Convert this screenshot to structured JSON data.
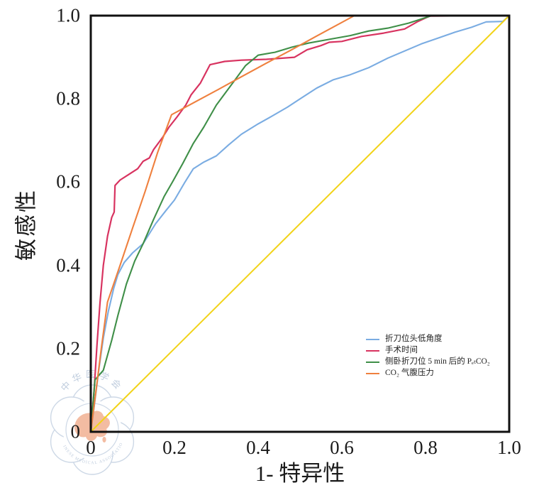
{
  "chart_data": {
    "type": "line",
    "title": "",
    "xlabel": "1- 特异性",
    "ylabel": "敏感性",
    "xlim": [
      0,
      1
    ],
    "ylim": [
      0,
      1
    ],
    "grid": false,
    "legend_position": "inside lower right",
    "xticks": [
      {
        "v": 0,
        "label": "0"
      },
      {
        "v": 0.2,
        "label": "0.2"
      },
      {
        "v": 0.4,
        "label": "0.4"
      },
      {
        "v": 0.6,
        "label": "0.6"
      },
      {
        "v": 0.8,
        "label": "0.8"
      },
      {
        "v": 1.0,
        "label": "1.0"
      }
    ],
    "yticks": [
      {
        "v": 0,
        "label": "0"
      },
      {
        "v": 0.2,
        "label": "0.2"
      },
      {
        "v": 0.4,
        "label": "0.4"
      },
      {
        "v": 0.6,
        "label": "0.6"
      },
      {
        "v": 0.8,
        "label": "0.8"
      },
      {
        "v": 1.0,
        "label": "1.0"
      }
    ],
    "series": [
      {
        "id": "jackknife-head-down-angle",
        "name": "折刀位头低角度",
        "color": "#7aace2",
        "width": 2.1,
        "in_legend": true,
        "points": [
          [
            0,
            0
          ],
          [
            0.008,
            0.06
          ],
          [
            0.02,
            0.155
          ],
          [
            0.03,
            0.225
          ],
          [
            0.042,
            0.29
          ],
          [
            0.055,
            0.345
          ],
          [
            0.065,
            0.378
          ],
          [
            0.08,
            0.407
          ],
          [
            0.1,
            0.43
          ],
          [
            0.125,
            0.452
          ],
          [
            0.155,
            0.5
          ],
          [
            0.18,
            0.532
          ],
          [
            0.2,
            0.557
          ],
          [
            0.225,
            0.6
          ],
          [
            0.245,
            0.632
          ],
          [
            0.27,
            0.648
          ],
          [
            0.3,
            0.663
          ],
          [
            0.33,
            0.69
          ],
          [
            0.36,
            0.715
          ],
          [
            0.4,
            0.74
          ],
          [
            0.427,
            0.755
          ],
          [
            0.47,
            0.78
          ],
          [
            0.5,
            0.8
          ],
          [
            0.54,
            0.826
          ],
          [
            0.58,
            0.846
          ],
          [
            0.62,
            0.858
          ],
          [
            0.664,
            0.875
          ],
          [
            0.71,
            0.898
          ],
          [
            0.75,
            0.915
          ],
          [
            0.79,
            0.932
          ],
          [
            0.83,
            0.946
          ],
          [
            0.87,
            0.96
          ],
          [
            0.91,
            0.972
          ],
          [
            0.945,
            0.985
          ],
          [
            0.985,
            0.986
          ],
          [
            1,
            1
          ]
        ]
      },
      {
        "id": "operation-time",
        "name": "手术时间",
        "color": "#d83360",
        "width": 2.2,
        "in_legend": true,
        "points": [
          [
            0,
            0
          ],
          [
            0.008,
            0.1
          ],
          [
            0.015,
            0.21
          ],
          [
            0.022,
            0.31
          ],
          [
            0.03,
            0.4
          ],
          [
            0.04,
            0.47
          ],
          [
            0.05,
            0.515
          ],
          [
            0.056,
            0.528
          ],
          [
            0.058,
            0.592
          ],
          [
            0.07,
            0.605
          ],
          [
            0.09,
            0.618
          ],
          [
            0.112,
            0.632
          ],
          [
            0.125,
            0.65
          ],
          [
            0.14,
            0.658
          ],
          [
            0.15,
            0.678
          ],
          [
            0.172,
            0.708
          ],
          [
            0.187,
            0.732
          ],
          [
            0.205,
            0.755
          ],
          [
            0.227,
            0.785
          ],
          [
            0.24,
            0.81
          ],
          [
            0.262,
            0.838
          ],
          [
            0.285,
            0.882
          ],
          [
            0.32,
            0.89
          ],
          [
            0.36,
            0.893
          ],
          [
            0.42,
            0.895
          ],
          [
            0.487,
            0.9
          ],
          [
            0.517,
            0.918
          ],
          [
            0.55,
            0.928
          ],
          [
            0.57,
            0.936
          ],
          [
            0.6,
            0.938
          ],
          [
            0.647,
            0.95
          ],
          [
            0.7,
            0.958
          ],
          [
            0.75,
            0.968
          ],
          [
            0.78,
            0.985
          ],
          [
            0.81,
            0.999
          ],
          [
            1,
            1
          ]
        ]
      },
      {
        "id": "petco2-5min-lateral-jackknife",
        "name": "侧卧折刀位 5 min 后的 PₑₜCO₂",
        "color": "#3f8f48",
        "width": 2.1,
        "in_legend": true,
        "points": [
          [
            0,
            0
          ],
          [
            0.01,
            0.125
          ],
          [
            0.03,
            0.148
          ],
          [
            0.05,
            0.22
          ],
          [
            0.065,
            0.28
          ],
          [
            0.085,
            0.355
          ],
          [
            0.105,
            0.41
          ],
          [
            0.125,
            0.452
          ],
          [
            0.15,
            0.51
          ],
          [
            0.175,
            0.565
          ],
          [
            0.195,
            0.6
          ],
          [
            0.22,
            0.645
          ],
          [
            0.245,
            0.693
          ],
          [
            0.27,
            0.732
          ],
          [
            0.3,
            0.785
          ],
          [
            0.342,
            0.842
          ],
          [
            0.37,
            0.88
          ],
          [
            0.4,
            0.905
          ],
          [
            0.44,
            0.912
          ],
          [
            0.48,
            0.924
          ],
          [
            0.52,
            0.934
          ],
          [
            0.57,
            0.943
          ],
          [
            0.62,
            0.952
          ],
          [
            0.664,
            0.963
          ],
          [
            0.71,
            0.97
          ],
          [
            0.76,
            0.982
          ],
          [
            0.815,
            1
          ],
          [
            1,
            1
          ]
        ]
      },
      {
        "id": "co2-pneumoperitoneum-pressure",
        "name": "CO₂ 气腹压力",
        "color": "#ef803e",
        "width": 2.1,
        "in_legend": true,
        "points": [
          [
            0,
            0
          ],
          [
            0.012,
            0.095
          ],
          [
            0.025,
            0.2
          ],
          [
            0.04,
            0.312
          ],
          [
            0.07,
            0.4
          ],
          [
            0.1,
            0.49
          ],
          [
            0.13,
            0.578
          ],
          [
            0.16,
            0.672
          ],
          [
            0.193,
            0.762
          ],
          [
            0.25,
            0.793
          ],
          [
            0.3,
            0.82
          ],
          [
            0.36,
            0.853
          ],
          [
            0.42,
            0.886
          ],
          [
            0.48,
            0.918
          ],
          [
            0.54,
            0.951
          ],
          [
            0.63,
            1
          ],
          [
            1,
            1
          ]
        ]
      },
      {
        "id": "reference-diagonal",
        "name": "参考线",
        "color": "#f2d318",
        "width": 2.0,
        "in_legend": false,
        "points": [
          [
            0,
            0
          ],
          [
            1,
            1
          ]
        ]
      }
    ]
  },
  "watermark": {
    "org_zh": "中华医学会",
    "org_en": "CHINESE MEDICAL ASSOCIATION",
    "map_color": "#f2b192",
    "line_color": "#c5d2e2",
    "text_color": "#b4c4d8"
  },
  "frame": {
    "color": "#111111"
  }
}
